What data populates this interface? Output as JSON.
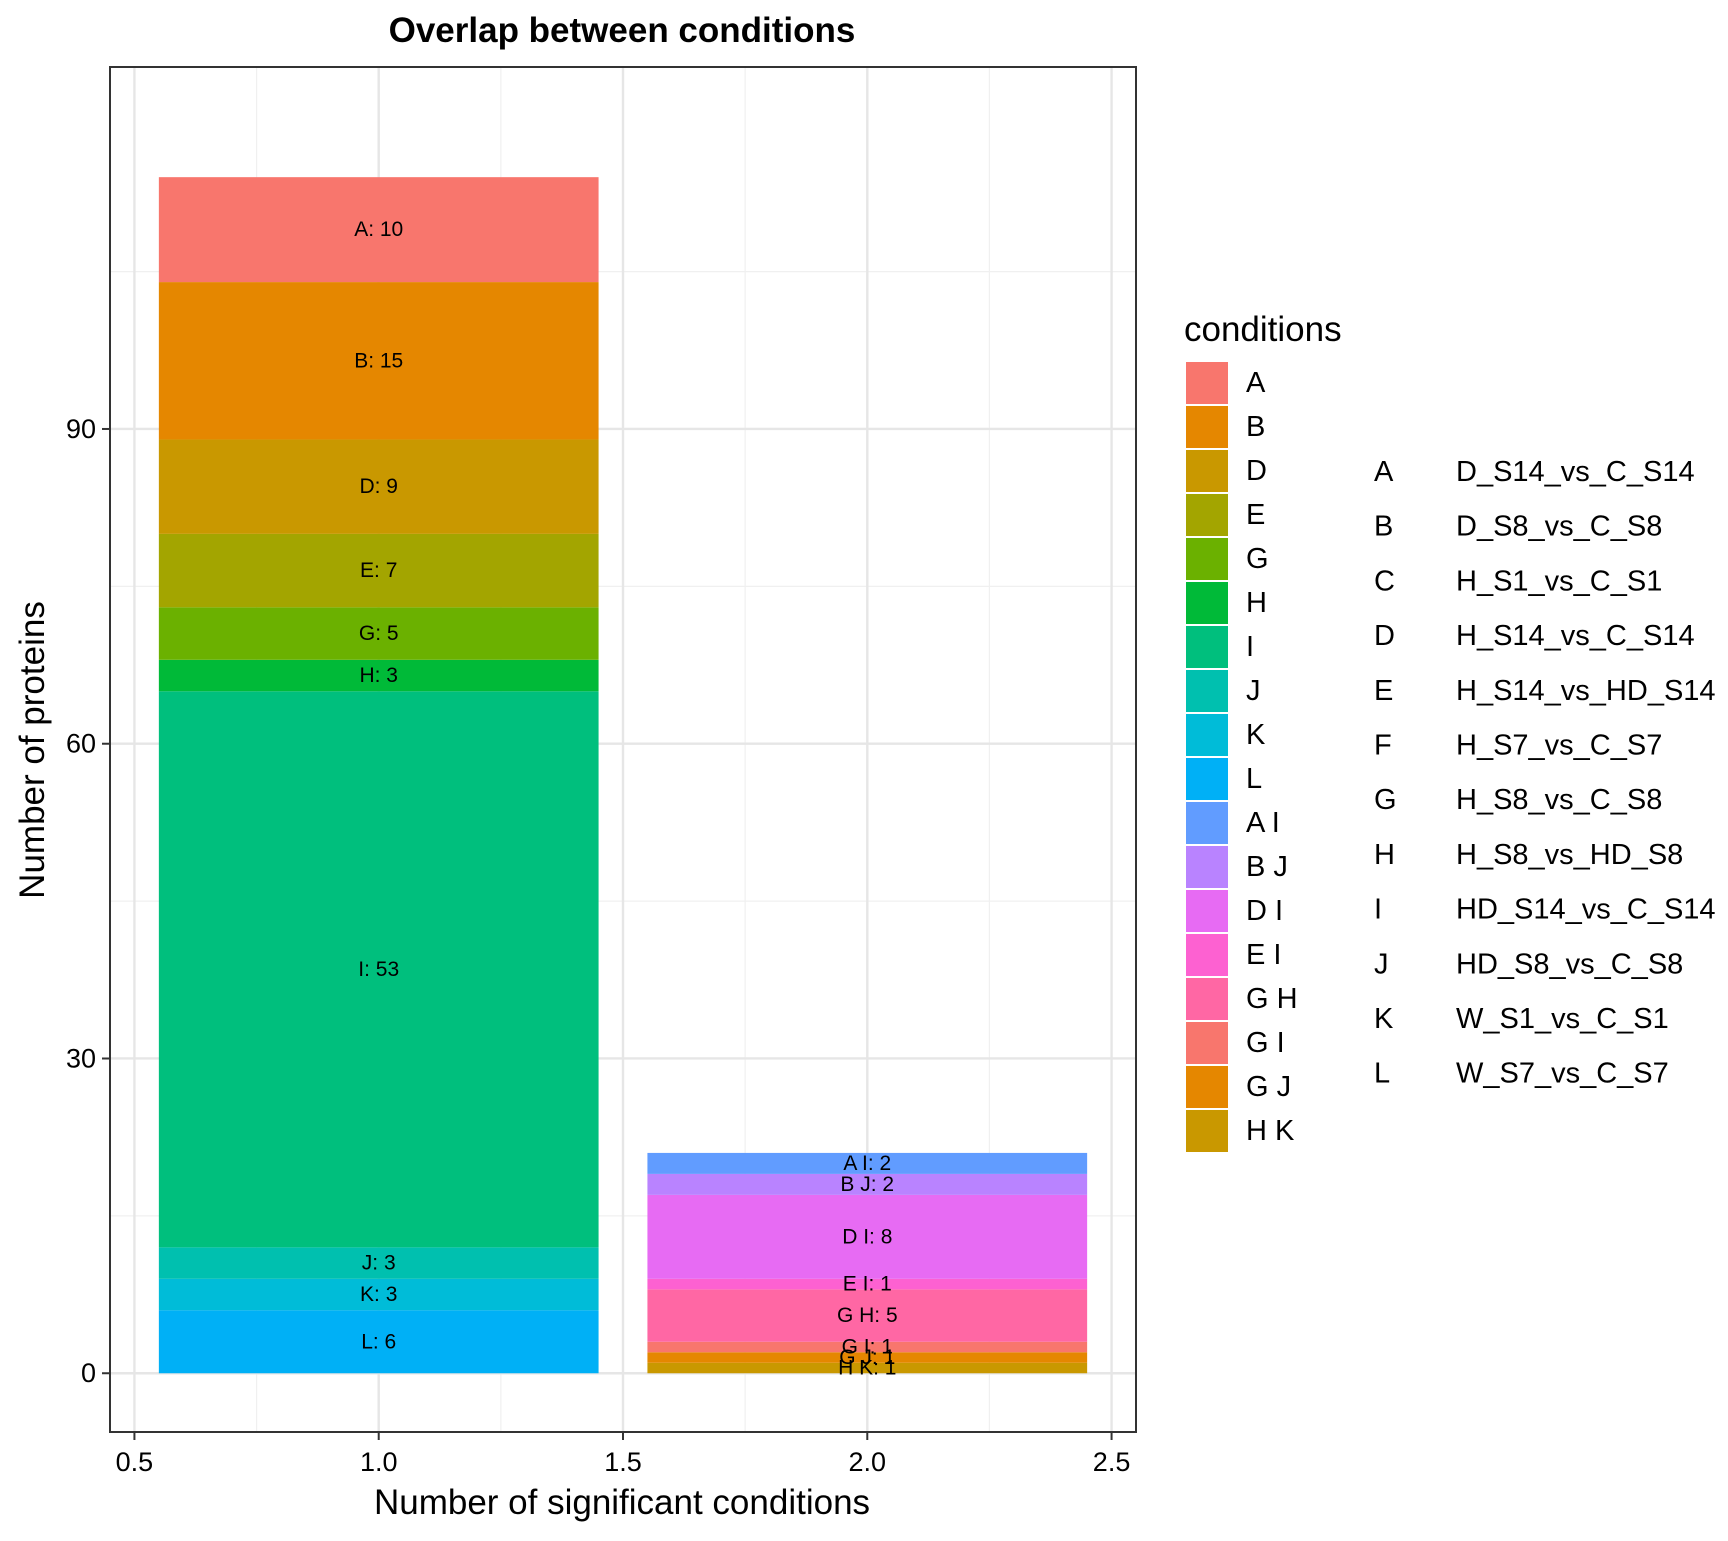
{
  "chart_data": {
    "type": "bar",
    "stacked": true,
    "title": "Overlap between conditions",
    "xlabel": "Number of significant conditions",
    "ylabel": "Number of proteins",
    "xlim": [
      0.45,
      2.55
    ],
    "ylim": [
      -5.6,
      124.5
    ],
    "xticks": [
      "0.5",
      "1.0",
      "1.5",
      "2.0",
      "2.5"
    ],
    "yticks": [
      "0",
      "30",
      "60",
      "90"
    ],
    "grid": true,
    "bar_width": 0.9,
    "bars": [
      {
        "x": 1,
        "segments": [
          {
            "condition": "L",
            "value": 6,
            "label": "L: 6"
          },
          {
            "condition": "K",
            "value": 3,
            "label": "K: 3"
          },
          {
            "condition": "J",
            "value": 3,
            "label": "J: 3"
          },
          {
            "condition": "I",
            "value": 53,
            "label": "I: 53"
          },
          {
            "condition": "H",
            "value": 3,
            "label": "H: 3"
          },
          {
            "condition": "G",
            "value": 5,
            "label": "G: 5"
          },
          {
            "condition": "E",
            "value": 7,
            "label": "E: 7"
          },
          {
            "condition": "D",
            "value": 9,
            "label": "D: 9"
          },
          {
            "condition": "B",
            "value": 15,
            "label": "B: 15"
          },
          {
            "condition": "A",
            "value": 10,
            "label": "A: 10"
          }
        ]
      },
      {
        "x": 2,
        "segments": [
          {
            "condition": "H K",
            "value": 1,
            "label": "H K: 1"
          },
          {
            "condition": "G J",
            "value": 1,
            "label": "G J: 1"
          },
          {
            "condition": "G I",
            "value": 1,
            "label": "G I: 1"
          },
          {
            "condition": "G H",
            "value": 5,
            "label": "G H: 5"
          },
          {
            "condition": "E I",
            "value": 1,
            "label": "E I: 1"
          },
          {
            "condition": "D I",
            "value": 8,
            "label": "D I: 8"
          },
          {
            "condition": "B J",
            "value": 2,
            "label": "B J: 2"
          },
          {
            "condition": "A I",
            "value": 2,
            "label": "A I: 2"
          }
        ]
      }
    ],
    "legend": {
      "title": "conditions",
      "placement": "right",
      "entries": [
        {
          "name": "A",
          "color": "#F8766D"
        },
        {
          "name": "B",
          "color": "#E58700"
        },
        {
          "name": "D",
          "color": "#C99800"
        },
        {
          "name": "E",
          "color": "#A3A500"
        },
        {
          "name": "G",
          "color": "#6BB100"
        },
        {
          "name": "H",
          "color": "#00BA38"
        },
        {
          "name": "I",
          "color": "#00BF7D"
        },
        {
          "name": "J",
          "color": "#00C0AF"
        },
        {
          "name": "K",
          "color": "#00BCD8"
        },
        {
          "name": "L",
          "color": "#00B0F6"
        },
        {
          "name": "A I",
          "color": "#619CFF"
        },
        {
          "name": "B J",
          "color": "#B983FF"
        },
        {
          "name": "D I",
          "color": "#E76BF3"
        },
        {
          "name": "E I",
          "color": "#FD61D1"
        },
        {
          "name": "G H",
          "color": "#FF67A4"
        },
        {
          "name": "G I",
          "color": "#F8766D"
        },
        {
          "name": "G J",
          "color": "#E58700"
        },
        {
          "name": "H K",
          "color": "#C99800"
        }
      ]
    },
    "condition_key": [
      {
        "code": "A",
        "name": "D_S14_vs_C_S14"
      },
      {
        "code": "B",
        "name": "D_S8_vs_C_S8"
      },
      {
        "code": "C",
        "name": "H_S1_vs_C_S1"
      },
      {
        "code": "D",
        "name": "H_S14_vs_C_S14"
      },
      {
        "code": "E",
        "name": "H_S14_vs_HD_S14"
      },
      {
        "code": "F",
        "name": "H_S7_vs_C_S7"
      },
      {
        "code": "G",
        "name": "H_S8_vs_C_S8"
      },
      {
        "code": "H",
        "name": "H_S8_vs_HD_S8"
      },
      {
        "code": "I",
        "name": "HD_S14_vs_C_S14"
      },
      {
        "code": "J",
        "name": "HD_S8_vs_C_S8"
      },
      {
        "code": "K",
        "name": "W_S1_vs_C_S1"
      },
      {
        "code": "L",
        "name": "W_S7_vs_C_S7"
      }
    ]
  }
}
